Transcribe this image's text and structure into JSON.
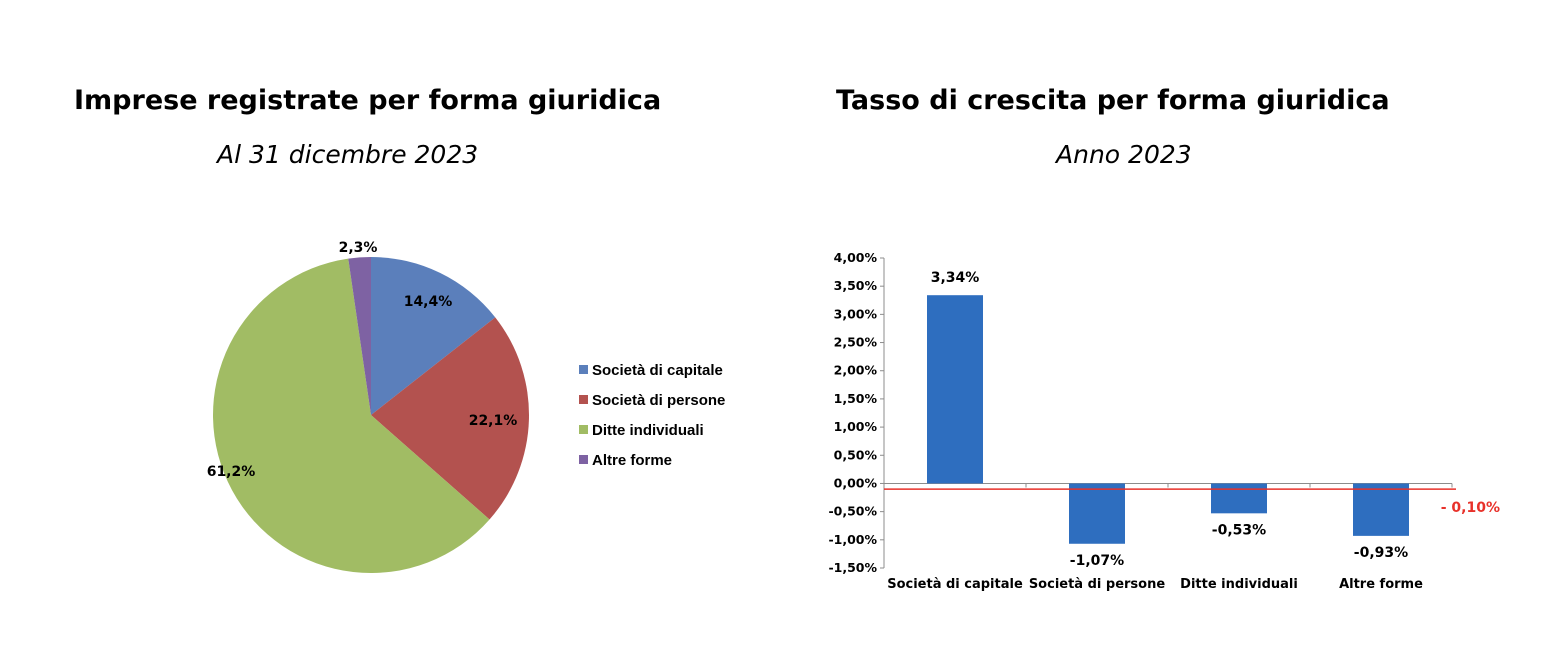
{
  "chart_data": [
    {
      "type": "pie",
      "title": "Imprese registrate per forma giuridica",
      "subtitle": "Al 31 dicembre 2023",
      "slices": [
        {
          "label": "Società di capitale",
          "value": 14.4,
          "display": "14,4%",
          "color": "#5b7fbb"
        },
        {
          "label": "Società di persone",
          "value": 22.1,
          "display": "22,1%",
          "color": "#b3524f"
        },
        {
          "label": "Ditte individuali",
          "value": 61.2,
          "display": "61,2%",
          "color": "#a1bc64"
        },
        {
          "label": "Altre forme",
          "value": 2.3,
          "display": "2,3%",
          "color": "#7e62a3"
        }
      ],
      "legend": "right"
    },
    {
      "type": "bar",
      "title": "Tasso di crescita per forma giuridica",
      "subtitle": "Anno 2023",
      "categories": [
        "Società di capitale",
        "Società di persone",
        "Ditte individuali",
        "Altre forme"
      ],
      "values": [
        3.34,
        -1.07,
        -0.53,
        -0.93
      ],
      "value_labels": [
        "3,34%",
        "-1,07%",
        "-0,53%",
        "-0,93%"
      ],
      "bar_color": "#2e6ebf",
      "ylim": [
        -1.5,
        4.0
      ],
      "yticks": [
        "4,00%",
        "3,50%",
        "3,00%",
        "2,50%",
        "2,00%",
        "1,50%",
        "1,00%",
        "0,50%",
        "0,00%",
        "-0,50%",
        "-1,00%",
        "-1,50%"
      ],
      "reference_line": {
        "value": -0.1,
        "label": "- 0,10%",
        "color": "#e8312a"
      },
      "grid": false
    }
  ]
}
